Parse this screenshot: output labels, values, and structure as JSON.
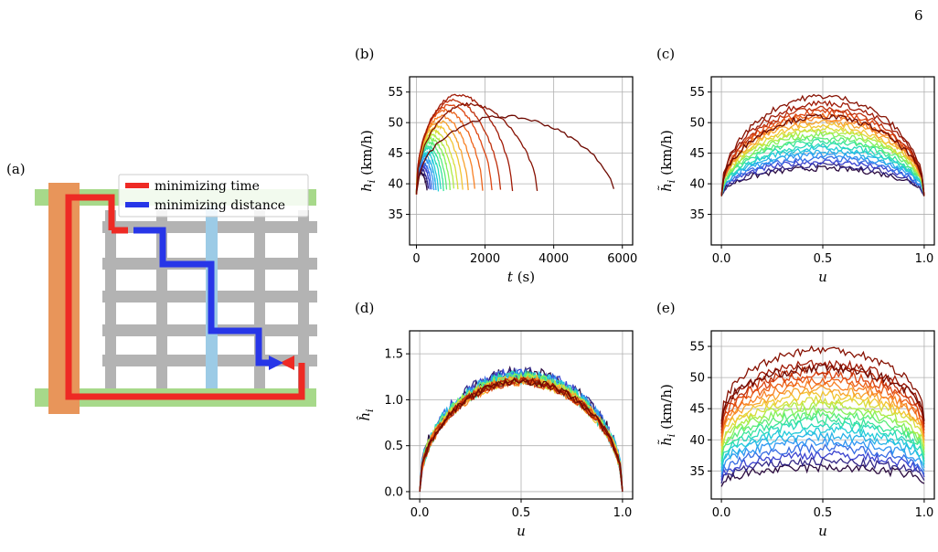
{
  "page_number": "6",
  "panel_labels": {
    "a": "(a)",
    "b": "(b)",
    "c": "(c)",
    "d": "(d)",
    "e": "(e)"
  },
  "colors": {
    "time_route": "#ee2a24",
    "distance_route": "#2736e8",
    "highway_vertical": "#e8955a",
    "highway_horizontal": "#a7d98a",
    "highlight_street": "#9ccbe6",
    "street": "#b3b3b3",
    "colormap": [
      "#2b0b3f",
      "#3c46d6",
      "#2e9df5",
      "#1fd1d4",
      "#3ee98c",
      "#9bf24a",
      "#f0d436",
      "#fb8a28",
      "#e34a12",
      "#a31a05",
      "#6e0a02"
    ]
  },
  "chart_data": [
    {
      "panel": "(a)",
      "type": "diagram",
      "legend": [
        "minimizing time",
        "minimizing distance"
      ]
    },
    {
      "panel": "(b)",
      "type": "line",
      "xlabel": "t (s)",
      "ylabel": "h_i (km/h)",
      "xlim": [
        -200,
        6300
      ],
      "ylim": [
        30,
        57.5
      ],
      "xticks": [
        "0",
        "2000",
        "4000",
        "6000"
      ],
      "xtick_values": [
        0,
        2000,
        4000,
        6000
      ],
      "yticks": [
        "35",
        "40",
        "45",
        "50",
        "55"
      ],
      "ytick_values": [
        35,
        40,
        45,
        50,
        55
      ],
      "series_count": 22,
      "grid": true,
      "series": [
        {
          "end": 310,
          "peak": 41.7
        },
        {
          "end": 350,
          "peak": 42.3
        },
        {
          "end": 400,
          "peak": 42.9
        },
        {
          "end": 450,
          "peak": 43.4
        },
        {
          "end": 510,
          "peak": 44.0
        },
        {
          "end": 570,
          "peak": 44.6
        },
        {
          "end": 640,
          "peak": 45.1
        },
        {
          "end": 710,
          "peak": 45.7
        },
        {
          "end": 790,
          "peak": 46.2
        },
        {
          "end": 880,
          "peak": 46.7
        },
        {
          "end": 980,
          "peak": 47.3
        },
        {
          "end": 1090,
          "peak": 47.9
        },
        {
          "end": 1210,
          "peak": 48.6
        },
        {
          "end": 1350,
          "peak": 49.4
        },
        {
          "end": 1510,
          "peak": 50.2
        },
        {
          "end": 1700,
          "peak": 51.0
        },
        {
          "end": 1930,
          "peak": 52.0
        },
        {
          "end": 2200,
          "peak": 52.8
        },
        {
          "end": 2450,
          "peak": 53.6
        },
        {
          "end": 2800,
          "peak": 54.5
        },
        {
          "end": 3520,
          "peak": 53.0
        },
        {
          "end": 5750,
          "peak": 51.0
        }
      ]
    },
    {
      "panel": "(c)",
      "type": "line",
      "xlabel": "u",
      "ylabel": "h̃_i (km/h)",
      "xlim": [
        -0.05,
        1.05
      ],
      "ylim": [
        30,
        57.5
      ],
      "xticks": [
        "0.0",
        "0.5",
        "1.0"
      ],
      "xtick_values": [
        0,
        0.5,
        1
      ],
      "yticks": [
        "35",
        "40",
        "45",
        "50",
        "55"
      ],
      "ytick_values": [
        35,
        40,
        45,
        50,
        55
      ],
      "series_count": 22,
      "grid": true,
      "series": [
        {
          "start": 38,
          "end": 38,
          "peak": 42.5
        },
        {
          "start": 38,
          "end": 38,
          "peak": 43.0
        },
        {
          "start": 38,
          "end": 38,
          "peak": 43.6
        },
        {
          "start": 38,
          "end": 38,
          "peak": 44.1
        },
        {
          "start": 38,
          "end": 38,
          "peak": 44.7
        },
        {
          "start": 38,
          "end": 38,
          "peak": 45.2
        },
        {
          "start": 38,
          "end": 38,
          "peak": 45.8
        },
        {
          "start": 38,
          "end": 38,
          "peak": 46.3
        },
        {
          "start": 38,
          "end": 38,
          "peak": 46.9
        },
        {
          "start": 38,
          "end": 38,
          "peak": 47.4
        },
        {
          "start": 38,
          "end": 38,
          "peak": 48.0
        },
        {
          "start": 38,
          "end": 38,
          "peak": 48.5
        },
        {
          "start": 38,
          "end": 38,
          "peak": 49.0
        },
        {
          "start": 38,
          "end": 38,
          "peak": 49.6
        },
        {
          "start": 38,
          "end": 38,
          "peak": 50.1
        },
        {
          "start": 38,
          "end": 38,
          "peak": 50.7
        },
        {
          "start": 38,
          "end": 38,
          "peak": 51.2
        },
        {
          "start": 38,
          "end": 38,
          "peak": 51.8
        },
        {
          "start": 38,
          "end": 38,
          "peak": 52.3
        },
        {
          "start": 38,
          "end": 38,
          "peak": 53.2
        },
        {
          "start": 38,
          "end": 38,
          "peak": 54.3
        },
        {
          "start": 38,
          "end": 38,
          "peak": 51.0
        }
      ]
    },
    {
      "panel": "(d)",
      "type": "line",
      "xlabel": "u",
      "ylabel": "ĥ_i",
      "xlim": [
        -0.05,
        1.05
      ],
      "ylim": [
        -0.08,
        1.75
      ],
      "xticks": [
        "0.0",
        "0.5",
        "1.0"
      ],
      "xtick_values": [
        0,
        0.5,
        1
      ],
      "yticks": [
        "0.0",
        "0.5",
        "1.0",
        "1.5"
      ],
      "ytick_values": [
        0,
        0.5,
        1,
        1.5
      ],
      "series_count": 22,
      "grid": true,
      "series": [
        {
          "start": 0,
          "end": 0,
          "peak": 1.28
        },
        {
          "start": 0,
          "end": 0,
          "peak": 1.27
        },
        {
          "start": 0,
          "end": 0,
          "peak": 1.27
        },
        {
          "start": 0,
          "end": 0,
          "peak": 1.26
        },
        {
          "start": 0,
          "end": 0,
          "peak": 1.26
        },
        {
          "start": 0,
          "end": 0,
          "peak": 1.25
        },
        {
          "start": 0,
          "end": 0,
          "peak": 1.25
        },
        {
          "start": 0,
          "end": 0,
          "peak": 1.24
        },
        {
          "start": 0,
          "end": 0,
          "peak": 1.24
        },
        {
          "start": 0,
          "end": 0,
          "peak": 1.23
        },
        {
          "start": 0,
          "end": 0,
          "peak": 1.23
        },
        {
          "start": 0,
          "end": 0,
          "peak": 1.22
        },
        {
          "start": 0,
          "end": 0,
          "peak": 1.22
        },
        {
          "start": 0,
          "end": 0,
          "peak": 1.21
        },
        {
          "start": 0,
          "end": 0,
          "peak": 1.21
        },
        {
          "start": 0,
          "end": 0,
          "peak": 1.2
        },
        {
          "start": 0,
          "end": 0,
          "peak": 1.2
        },
        {
          "start": 0,
          "end": 0,
          "peak": 1.2
        },
        {
          "start": 0,
          "end": 0,
          "peak": 1.2
        },
        {
          "start": 0,
          "end": 0,
          "peak": 1.2
        },
        {
          "start": 0,
          "end": 0,
          "peak": 1.2
        },
        {
          "start": 0,
          "end": 0,
          "peak": 1.2
        }
      ]
    },
    {
      "panel": "(e)",
      "type": "line",
      "xlabel": "u",
      "ylabel": "h̃_i (km/h)",
      "xlim": [
        -0.05,
        1.05
      ],
      "ylim": [
        30.5,
        57.5
      ],
      "xticks": [
        "0.0",
        "0.5",
        "1.0"
      ],
      "xtick_values": [
        0,
        0.5,
        1
      ],
      "yticks": [
        "35",
        "40",
        "45",
        "50",
        "55"
      ],
      "ytick_values": [
        35,
        40,
        45,
        50,
        55
      ],
      "series_count": 22,
      "grid": true,
      "series": [
        {
          "start": 32.5,
          "end": 33.0,
          "peak": 35.5
        },
        {
          "start": 33.0,
          "end": 33.5,
          "peak": 36.5
        },
        {
          "start": 33.5,
          "end": 34.0,
          "peak": 37.6
        },
        {
          "start": 34.0,
          "end": 34.5,
          "peak": 38.7
        },
        {
          "start": 34.5,
          "end": 35.0,
          "peak": 39.7
        },
        {
          "start": 35.0,
          "end": 35.5,
          "peak": 40.6
        },
        {
          "start": 35.5,
          "end": 36.0,
          "peak": 41.5
        },
        {
          "start": 36.0,
          "end": 36.5,
          "peak": 42.4
        },
        {
          "start": 36.5,
          "end": 37.0,
          "peak": 43.2
        },
        {
          "start": 37.0,
          "end": 37.5,
          "peak": 44.0
        },
        {
          "start": 37.5,
          "end": 38.0,
          "peak": 44.8
        },
        {
          "start": 38.0,
          "end": 38.5,
          "peak": 45.6
        },
        {
          "start": 38.5,
          "end": 39.0,
          "peak": 46.4
        },
        {
          "start": 39.0,
          "end": 39.5,
          "peak": 47.2
        },
        {
          "start": 39.5,
          "end": 40.0,
          "peak": 48.0
        },
        {
          "start": 40.0,
          "end": 40.5,
          "peak": 48.8
        },
        {
          "start": 40.5,
          "end": 41.0,
          "peak": 49.6
        },
        {
          "start": 41.0,
          "end": 41.5,
          "peak": 50.4
        },
        {
          "start": 41.5,
          "end": 42.0,
          "peak": 51.2
        },
        {
          "start": 42.0,
          "end": 42.5,
          "peak": 52.3
        },
        {
          "start": 42.5,
          "end": 43.0,
          "peak": 54.5
        },
        {
          "start": 43.0,
          "end": 43.0,
          "peak": 51.5
        }
      ]
    }
  ]
}
